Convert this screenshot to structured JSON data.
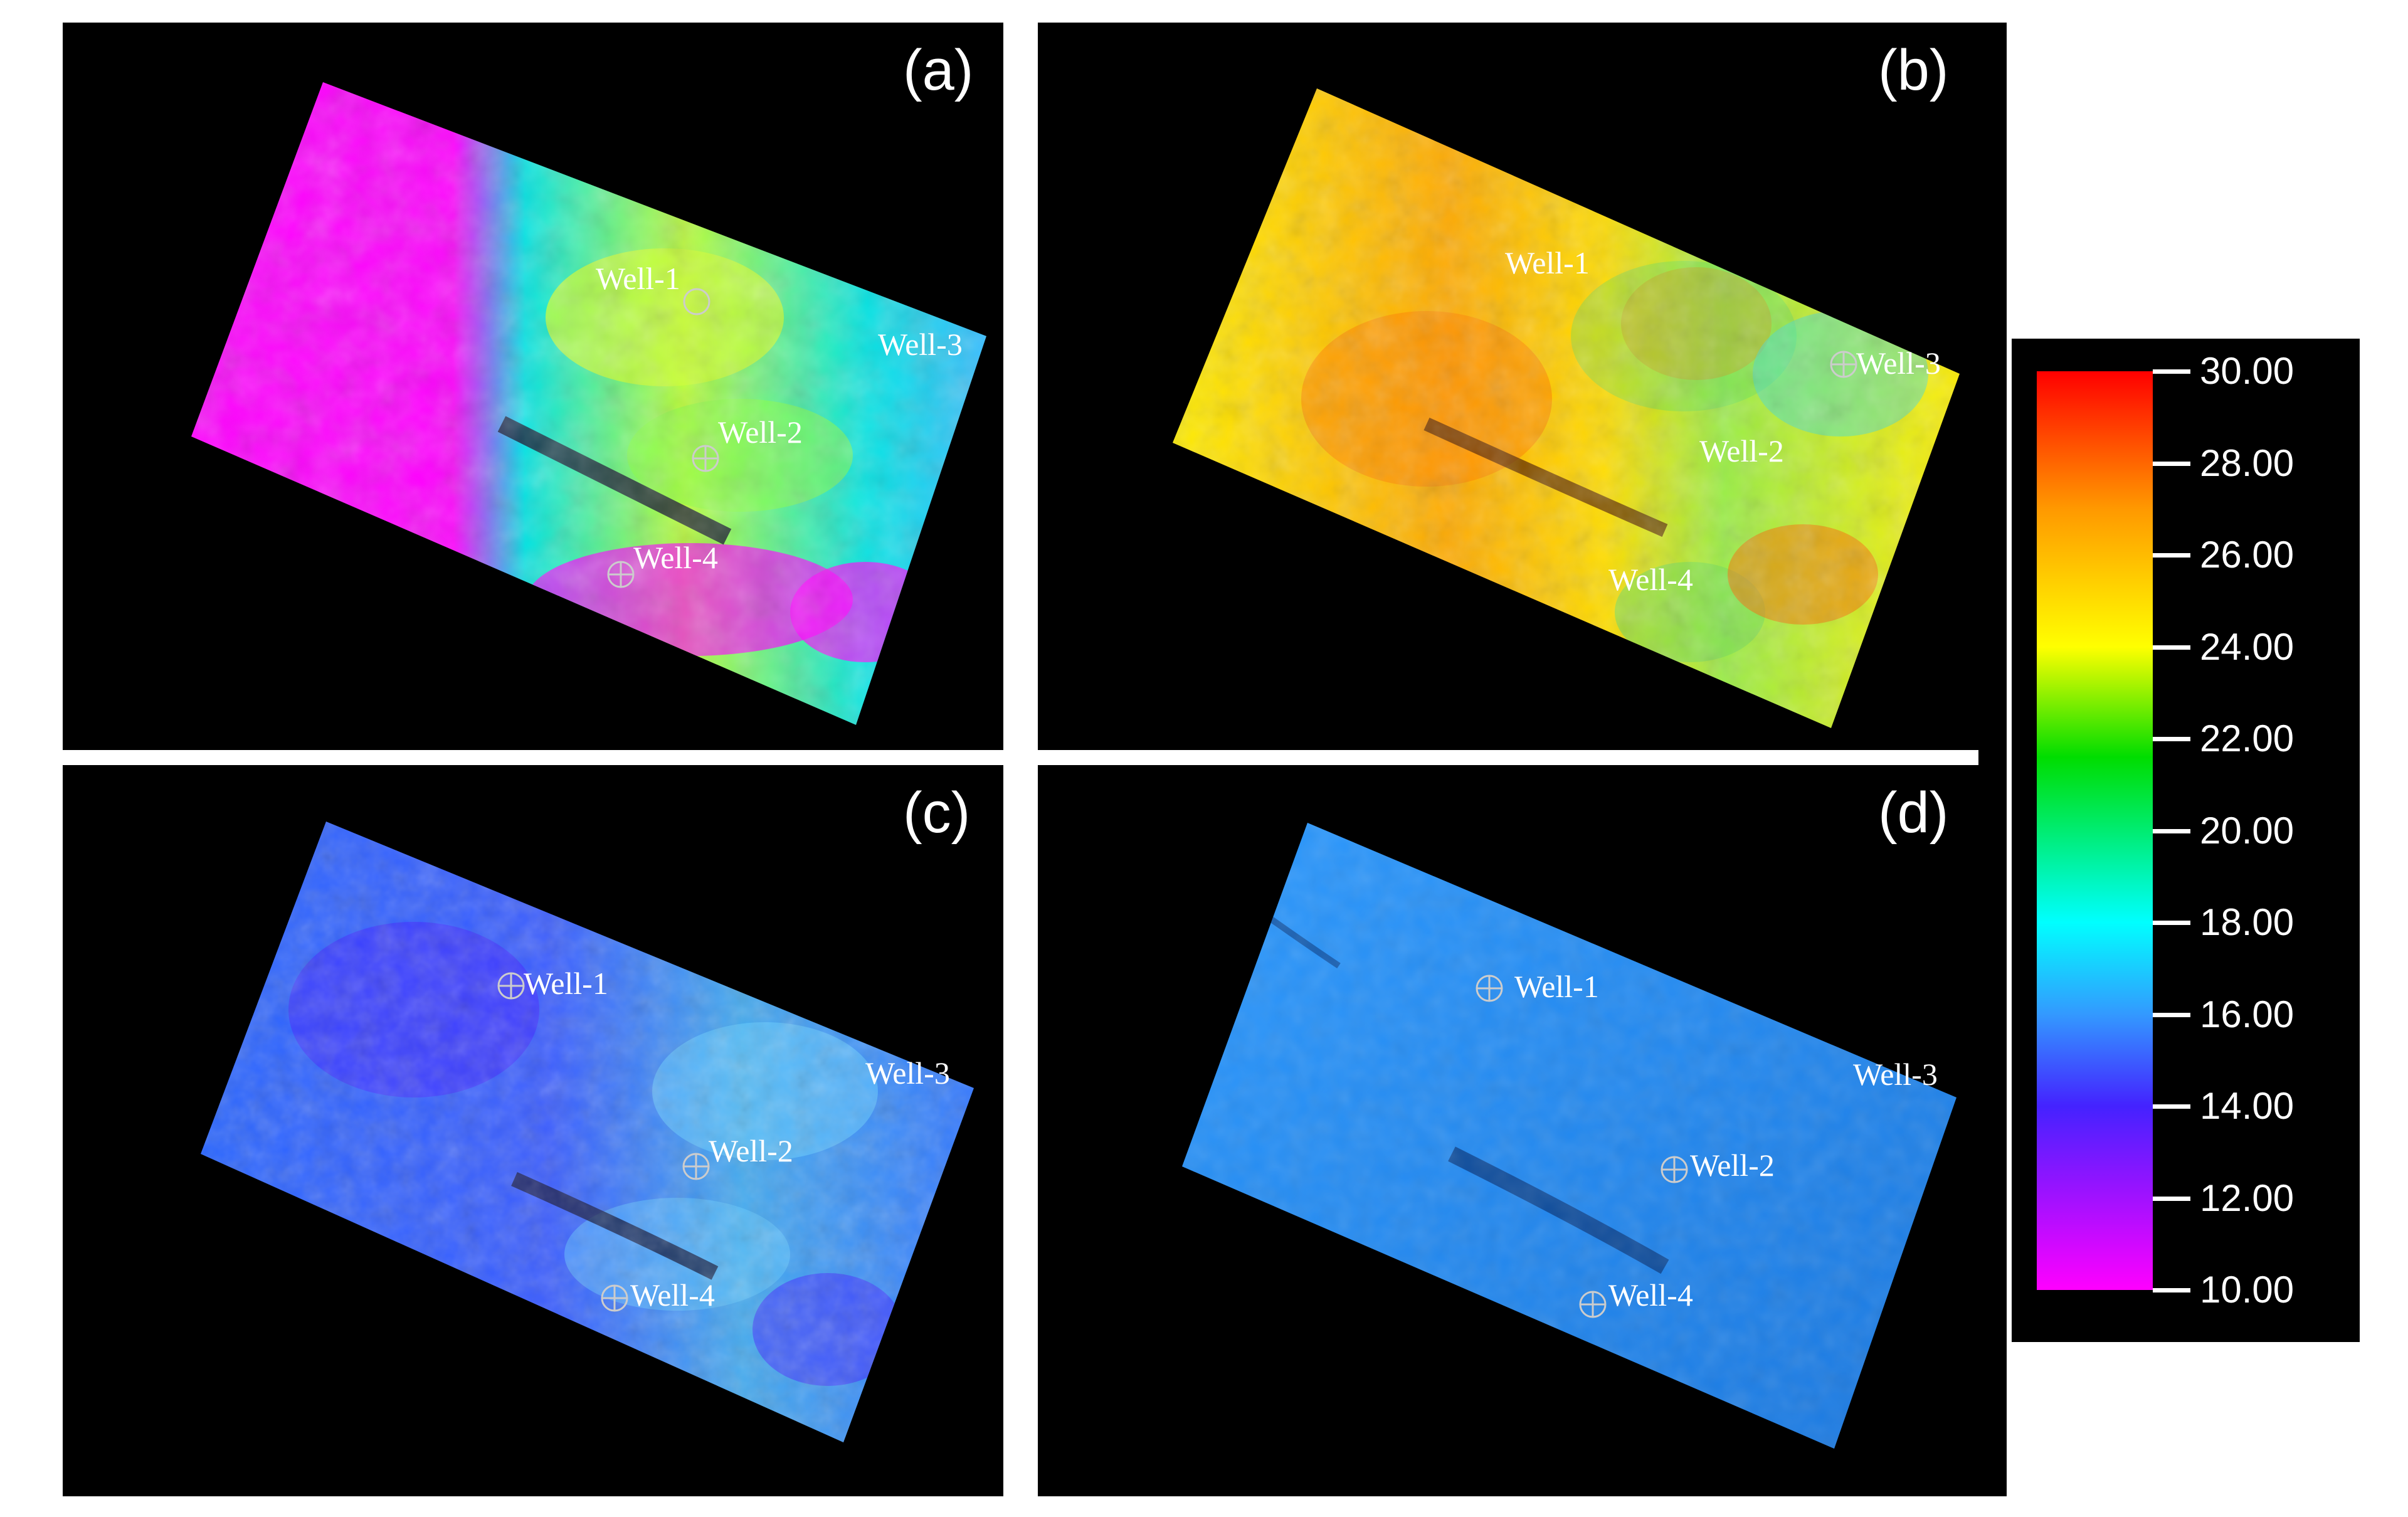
{
  "panels": [
    {
      "id": "a",
      "label": "(a)",
      "wells": [
        "Well-1",
        "Well-2",
        "Well-3",
        "Well-4"
      ]
    },
    {
      "id": "b",
      "label": "(b)",
      "wells": [
        "Well-1",
        "Well-2",
        "Well-3",
        "Well-4"
      ]
    },
    {
      "id": "c",
      "label": "(c)",
      "wells": [
        "Well-1",
        "Well-2",
        "Well-3",
        "Well-4"
      ]
    },
    {
      "id": "d",
      "label": "(d)",
      "wells": [
        "Well-1",
        "Well-2",
        "Well-3",
        "Well-4"
      ]
    }
  ],
  "colorbar": {
    "ticks": [
      "30.00",
      "28.00",
      "26.00",
      "24.00",
      "22.00",
      "20.00",
      "18.00",
      "16.00",
      "14.00",
      "12.00",
      "10.00"
    ],
    "min": 10,
    "max": 30,
    "colors": [
      "#ff0000",
      "#ff9900",
      "#ffff00",
      "#00dd00",
      "#00ffff",
      "#3399ff",
      "#4422ff",
      "#ff00ff"
    ]
  },
  "panel_colors": {
    "a": {
      "base": "#00e5e5",
      "accents": [
        "#ff00ff",
        "#ccff33",
        "#88ff44"
      ]
    },
    "b": {
      "base": "#ffdd00",
      "accents": [
        "#ff8800",
        "#ff3300",
        "#44dd66"
      ]
    },
    "c": {
      "base": "#2a6cff",
      "accents": [
        "#4422ff",
        "#44bbee",
        "#66ccff"
      ]
    },
    "d": {
      "base": "#1e90ff",
      "accents": [
        "#1a70d0",
        "#3ba0ff"
      ]
    }
  }
}
